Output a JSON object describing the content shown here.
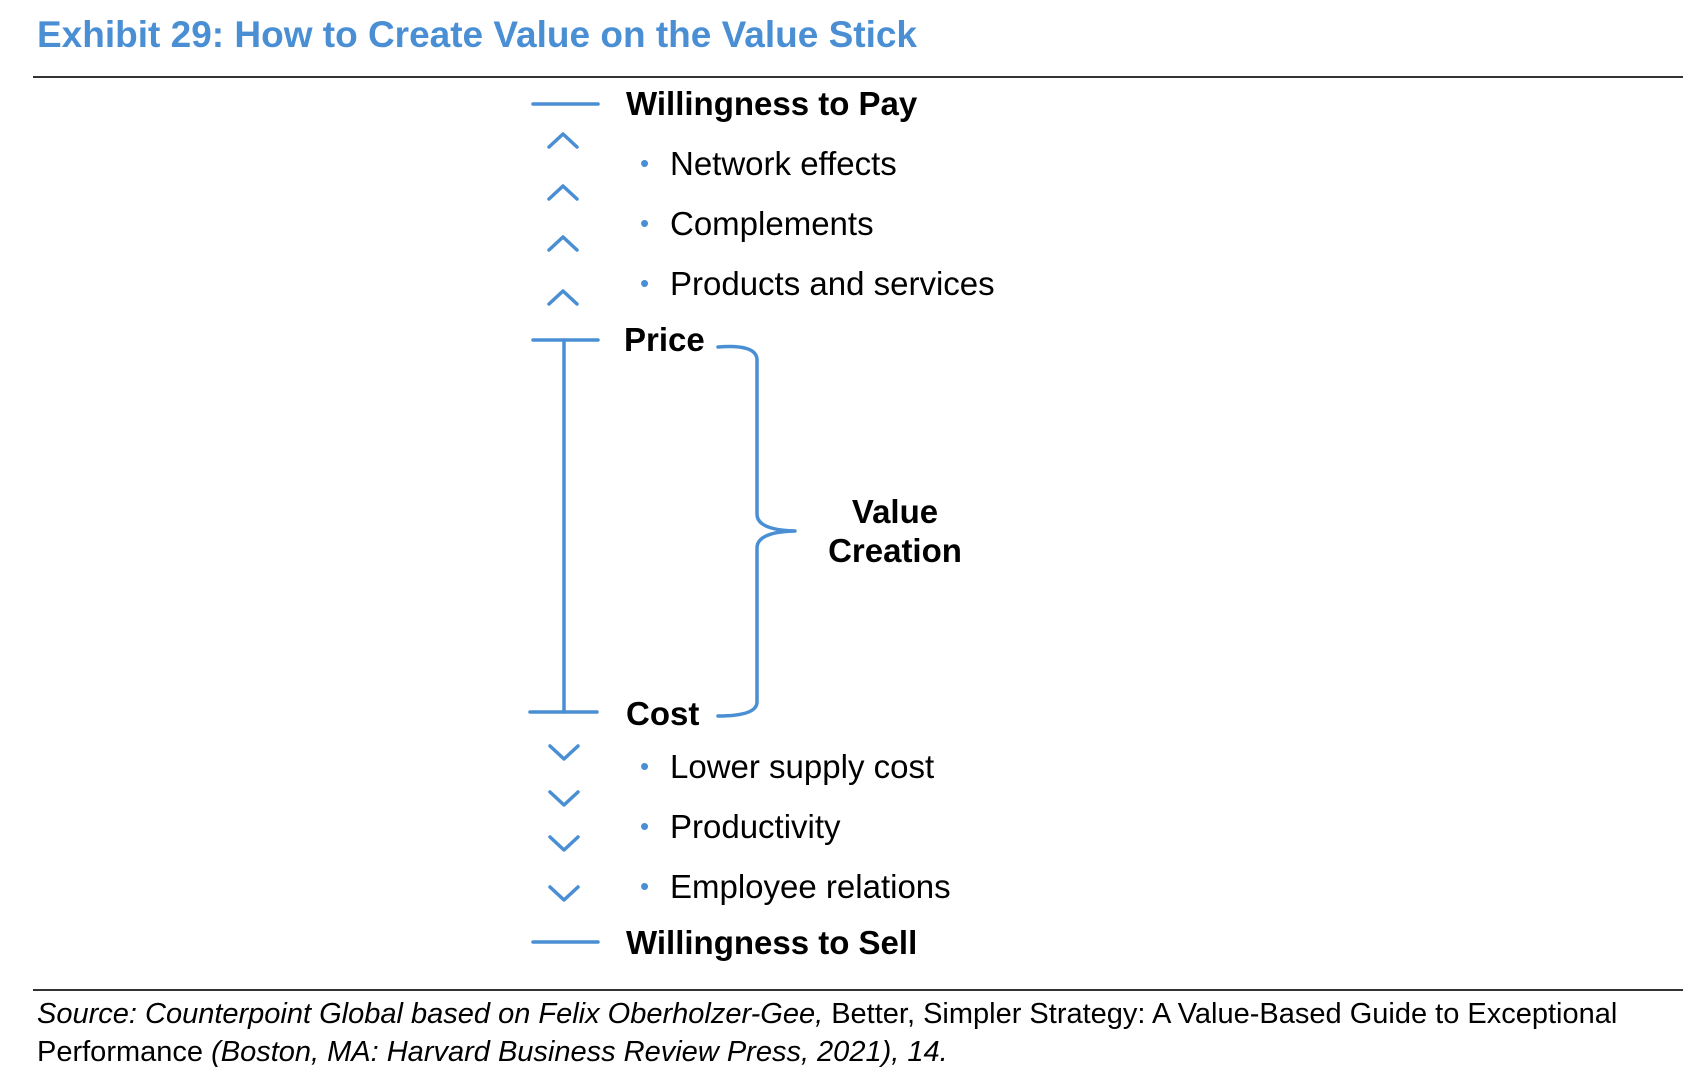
{
  "title": "Exhibit 29: How to Create Value on the Value Stick",
  "stick": {
    "wtp_label": "Willingness to Pay",
    "price_label": "Price",
    "cost_label": "Cost",
    "wts_label": "Willingness to Sell",
    "value_creation_line1": "Value",
    "value_creation_line2": "Creation",
    "wtp_drivers": [
      "Network effects",
      "Complements",
      "Products and services"
    ],
    "cost_drivers": [
      "Lower supply cost",
      "Productivity",
      "Employee relations"
    ],
    "bullet_glyph": "•",
    "up_arrow_icon": "chevron-up-icon",
    "down_arrow_icon": "chevron-down-icon",
    "accent_color": "#4a8fd4"
  },
  "source": {
    "part1": "Source: Counterpoint Global based on Felix Oberholzer-Gee, ",
    "part2": "Better, Simpler Strategy: A Value-Based Guide to Exceptional Performance",
    "part3": " (Boston, MA: Harvard Business Review Press, 2021), 14."
  }
}
